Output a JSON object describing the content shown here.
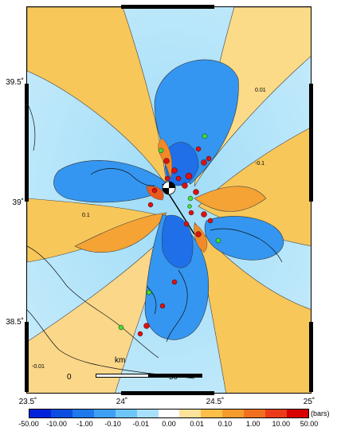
{
  "map": {
    "y_ticks": [
      {
        "value": 39.5,
        "label": "39.5˚"
      },
      {
        "value": 39.0,
        "label": "39˚"
      },
      {
        "value": 38.5,
        "label": "38.5˚"
      }
    ],
    "x_ticks": [
      {
        "value": 23.5,
        "label": "23.5˚"
      },
      {
        "value": 24.0,
        "label": "24˚"
      },
      {
        "value": 24.5,
        "label": "24.5˚"
      },
      {
        "value": 25.0,
        "label": "25˚"
      }
    ],
    "contour_labels": [
      "0.1",
      "0.01",
      "-0.1",
      "-0.01"
    ],
    "epicenter_icon": "beachball-focal-mechanism-icon"
  },
  "scale_bar": {
    "unit": "km",
    "start_label": "0",
    "end_label": "50"
  },
  "colorbar": {
    "unit": "(bars)",
    "tick_labels": [
      "-50.00",
      "-10.00",
      "-1.00",
      "-0.10",
      "-0.01",
      "0.00",
      "0.01",
      "0.10",
      "1.00",
      "10.00",
      "50.00"
    ],
    "colors": [
      "#0022dd",
      "#0a4de0",
      "#1f78ec",
      "#3ea0f4",
      "#6ec6f8",
      "#a8e0fb",
      "#ffffff",
      "#fde29a",
      "#fcbf4a",
      "#f59c2c",
      "#f07022",
      "#ea3c1a",
      "#d80000"
    ]
  },
  "legend_colors": {
    "red_event": "#dd1111",
    "green_event": "#44dd33",
    "stress_positive": "#f6bb46",
    "stress_negative": "#2d8ef0"
  }
}
